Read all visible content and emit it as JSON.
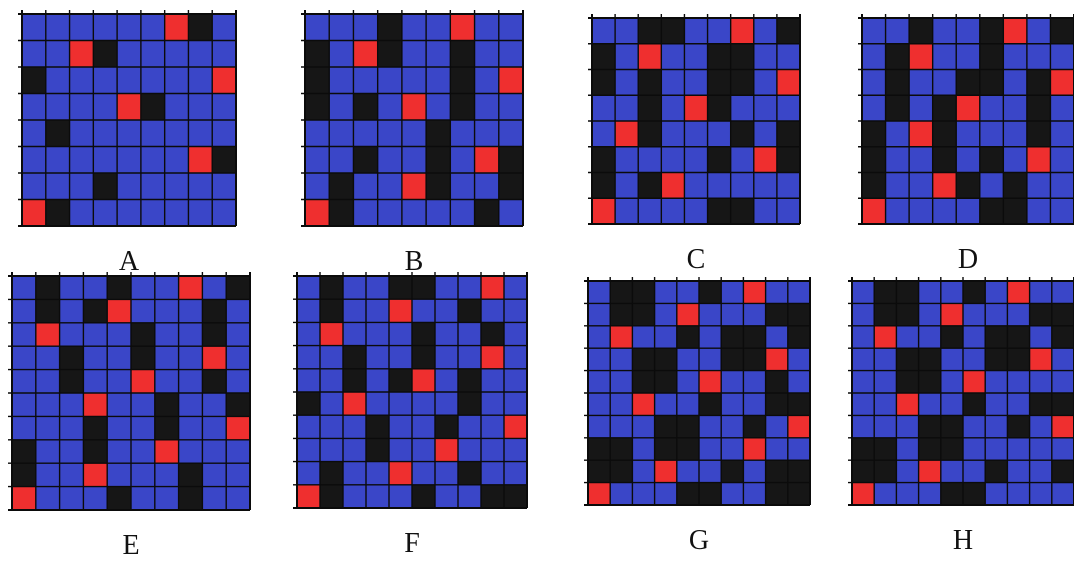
{
  "colors": {
    "blue": "#3a46c8",
    "black": "#161616",
    "red": "#ef2f2f",
    "grid": "#0b0b0b"
  },
  "legend_codes": {
    "b": "blue",
    "k": "black",
    "r": "red"
  },
  "panels": [
    {
      "label": "A",
      "rows": [
        "bbbbbbrkb",
        "bbrkbbbbb",
        "kbbbbbbbr",
        "bbbbrkbbb",
        "bkbbbbbbb",
        "bbbbbbbrk",
        "bbbkbbbbb",
        "rkbbbbbbb"
      ]
    },
    {
      "label": "B",
      "rows": [
        "bbbkbbrbb",
        "kbrkbbkbb",
        "kbbbbbkbr",
        "kbkbrbkbb",
        "bbbbbkbbb",
        "bbkbbkbrk",
        "bkbbrkbbk",
        "rkbbbbbkb"
      ]
    },
    {
      "label": "C",
      "rows": [
        "bbkkbbrbk",
        "kbrbbkkbb",
        "kbkbbkkbr",
        "bbkbrkbbb",
        "brkbbbkbk",
        "kbbbbkbrk",
        "kbkrbbbbb",
        "rbbbbkkbb"
      ]
    },
    {
      "label": "D",
      "rows": [
        "bbkbbkrbk",
        "bkrbbkbbb",
        "bkbbkkbkr",
        "bkbkrbbkb",
        "kbrkbbbkb",
        "kbbkbkbrb",
        "kbbrkbkbb",
        "rbbbbkkbb"
      ]
    },
    {
      "label": "E",
      "rows": [
        "bkbbkbbrbk",
        "bkbkrbbbkb",
        "brbbbkbbkb",
        "bbkbbkbbrb",
        "bbkbbrbbkb",
        "bbbrbbkbbk",
        "bbbkbbkbbr",
        "kbbkbbrbbb",
        "kbbrbbbkbb",
        "rbbbkbbkbb"
      ]
    },
    {
      "label": "F",
      "rows": [
        "bkbbkkbbrb",
        "bkbbrbbkbb",
        "brbbbkbbkb",
        "bbkbbkbbrb",
        "bbkbkrbkbb",
        "kbrbbbbkbb",
        "bbbkbbkbbr",
        "bbbkbbrbbb",
        "bkbbrbbkbb",
        "rkbbbkbbkk"
      ]
    },
    {
      "label": "G",
      "rows": [
        "bkkbbkbrbb",
        "bkkbrbbbkk",
        "brbbkbkkbk",
        "bbkkbbkkrb",
        "bbkkbrbbkb",
        "bbrbbkbbkk",
        "bbbkkbbkbr",
        "kkbkkbbrbb",
        "kkbrbbkbkk",
        "rbbbkkbbkk"
      ]
    },
    {
      "label": "H",
      "rows": [
        "bkkbbkbrbb",
        "bkkbrbbbkk",
        "brbbkbkkbk",
        "bbkkbbkkrb",
        "bbkkbrbbbb",
        "bbrbbkbbkk",
        "bbbkkbbkbr",
        "kkbkkbbbbb",
        "kkbrbbkbbk",
        "rbbbkkbbbb"
      ]
    }
  ]
}
